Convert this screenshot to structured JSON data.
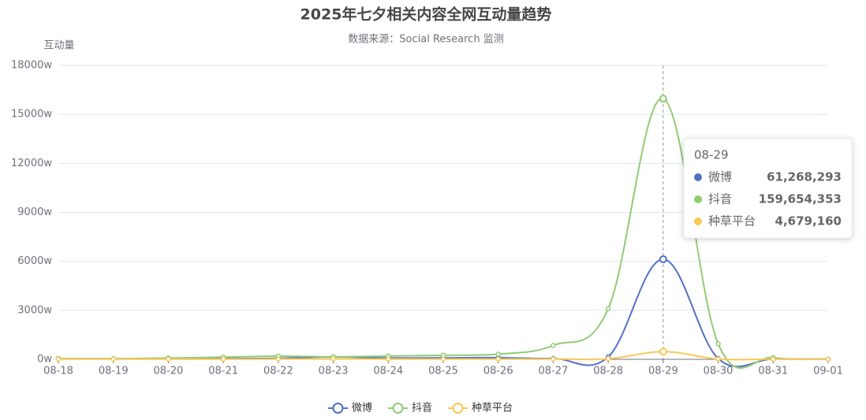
{
  "chart_data": {
    "type": "line",
    "title": "2025年七夕相关内容全网互动量趋势",
    "subtitle": "数据来源：Social Research 监测",
    "y_axis_label": "互动量",
    "categories": [
      "08-18",
      "08-19",
      "08-20",
      "08-21",
      "08-22",
      "08-23",
      "08-24",
      "08-25",
      "08-26",
      "08-27",
      "08-28",
      "08-29",
      "08-30",
      "08-31",
      "09-01"
    ],
    "series": [
      {
        "name": "微博",
        "color": "#5470c6",
        "values": [
          30,
          30,
          30,
          40,
          60,
          150,
          80,
          90,
          100,
          50,
          150,
          6126.8293,
          50,
          20,
          10
        ]
      },
      {
        "name": "抖音",
        "color": "#91cc75",
        "values": [
          50,
          40,
          80,
          130,
          200,
          150,
          200,
          250,
          320,
          850,
          3100,
          15965.4353,
          950,
          100,
          20
        ]
      },
      {
        "name": "种草平台",
        "color": "#fac858",
        "values": [
          10,
          10,
          10,
          10,
          20,
          30,
          20,
          20,
          20,
          20,
          30,
          467.916,
          20,
          10,
          5
        ]
      }
    ],
    "ylim": [
      0,
      18000
    ],
    "yticks": [
      {
        "value": 0,
        "label": "0w"
      },
      {
        "value": 3000,
        "label": "3000w"
      },
      {
        "value": 6000,
        "label": "6000w"
      },
      {
        "value": 9000,
        "label": "9000w"
      },
      {
        "value": 12000,
        "label": "12000w"
      },
      {
        "value": 15000,
        "label": "15000w"
      },
      {
        "value": 18000,
        "label": "18000w"
      }
    ],
    "grid": true,
    "legend": "bottom",
    "tooltip": {
      "category": "08-29",
      "values": [
        "61,268,293",
        "159,654,353",
        "4,679,160"
      ]
    }
  }
}
